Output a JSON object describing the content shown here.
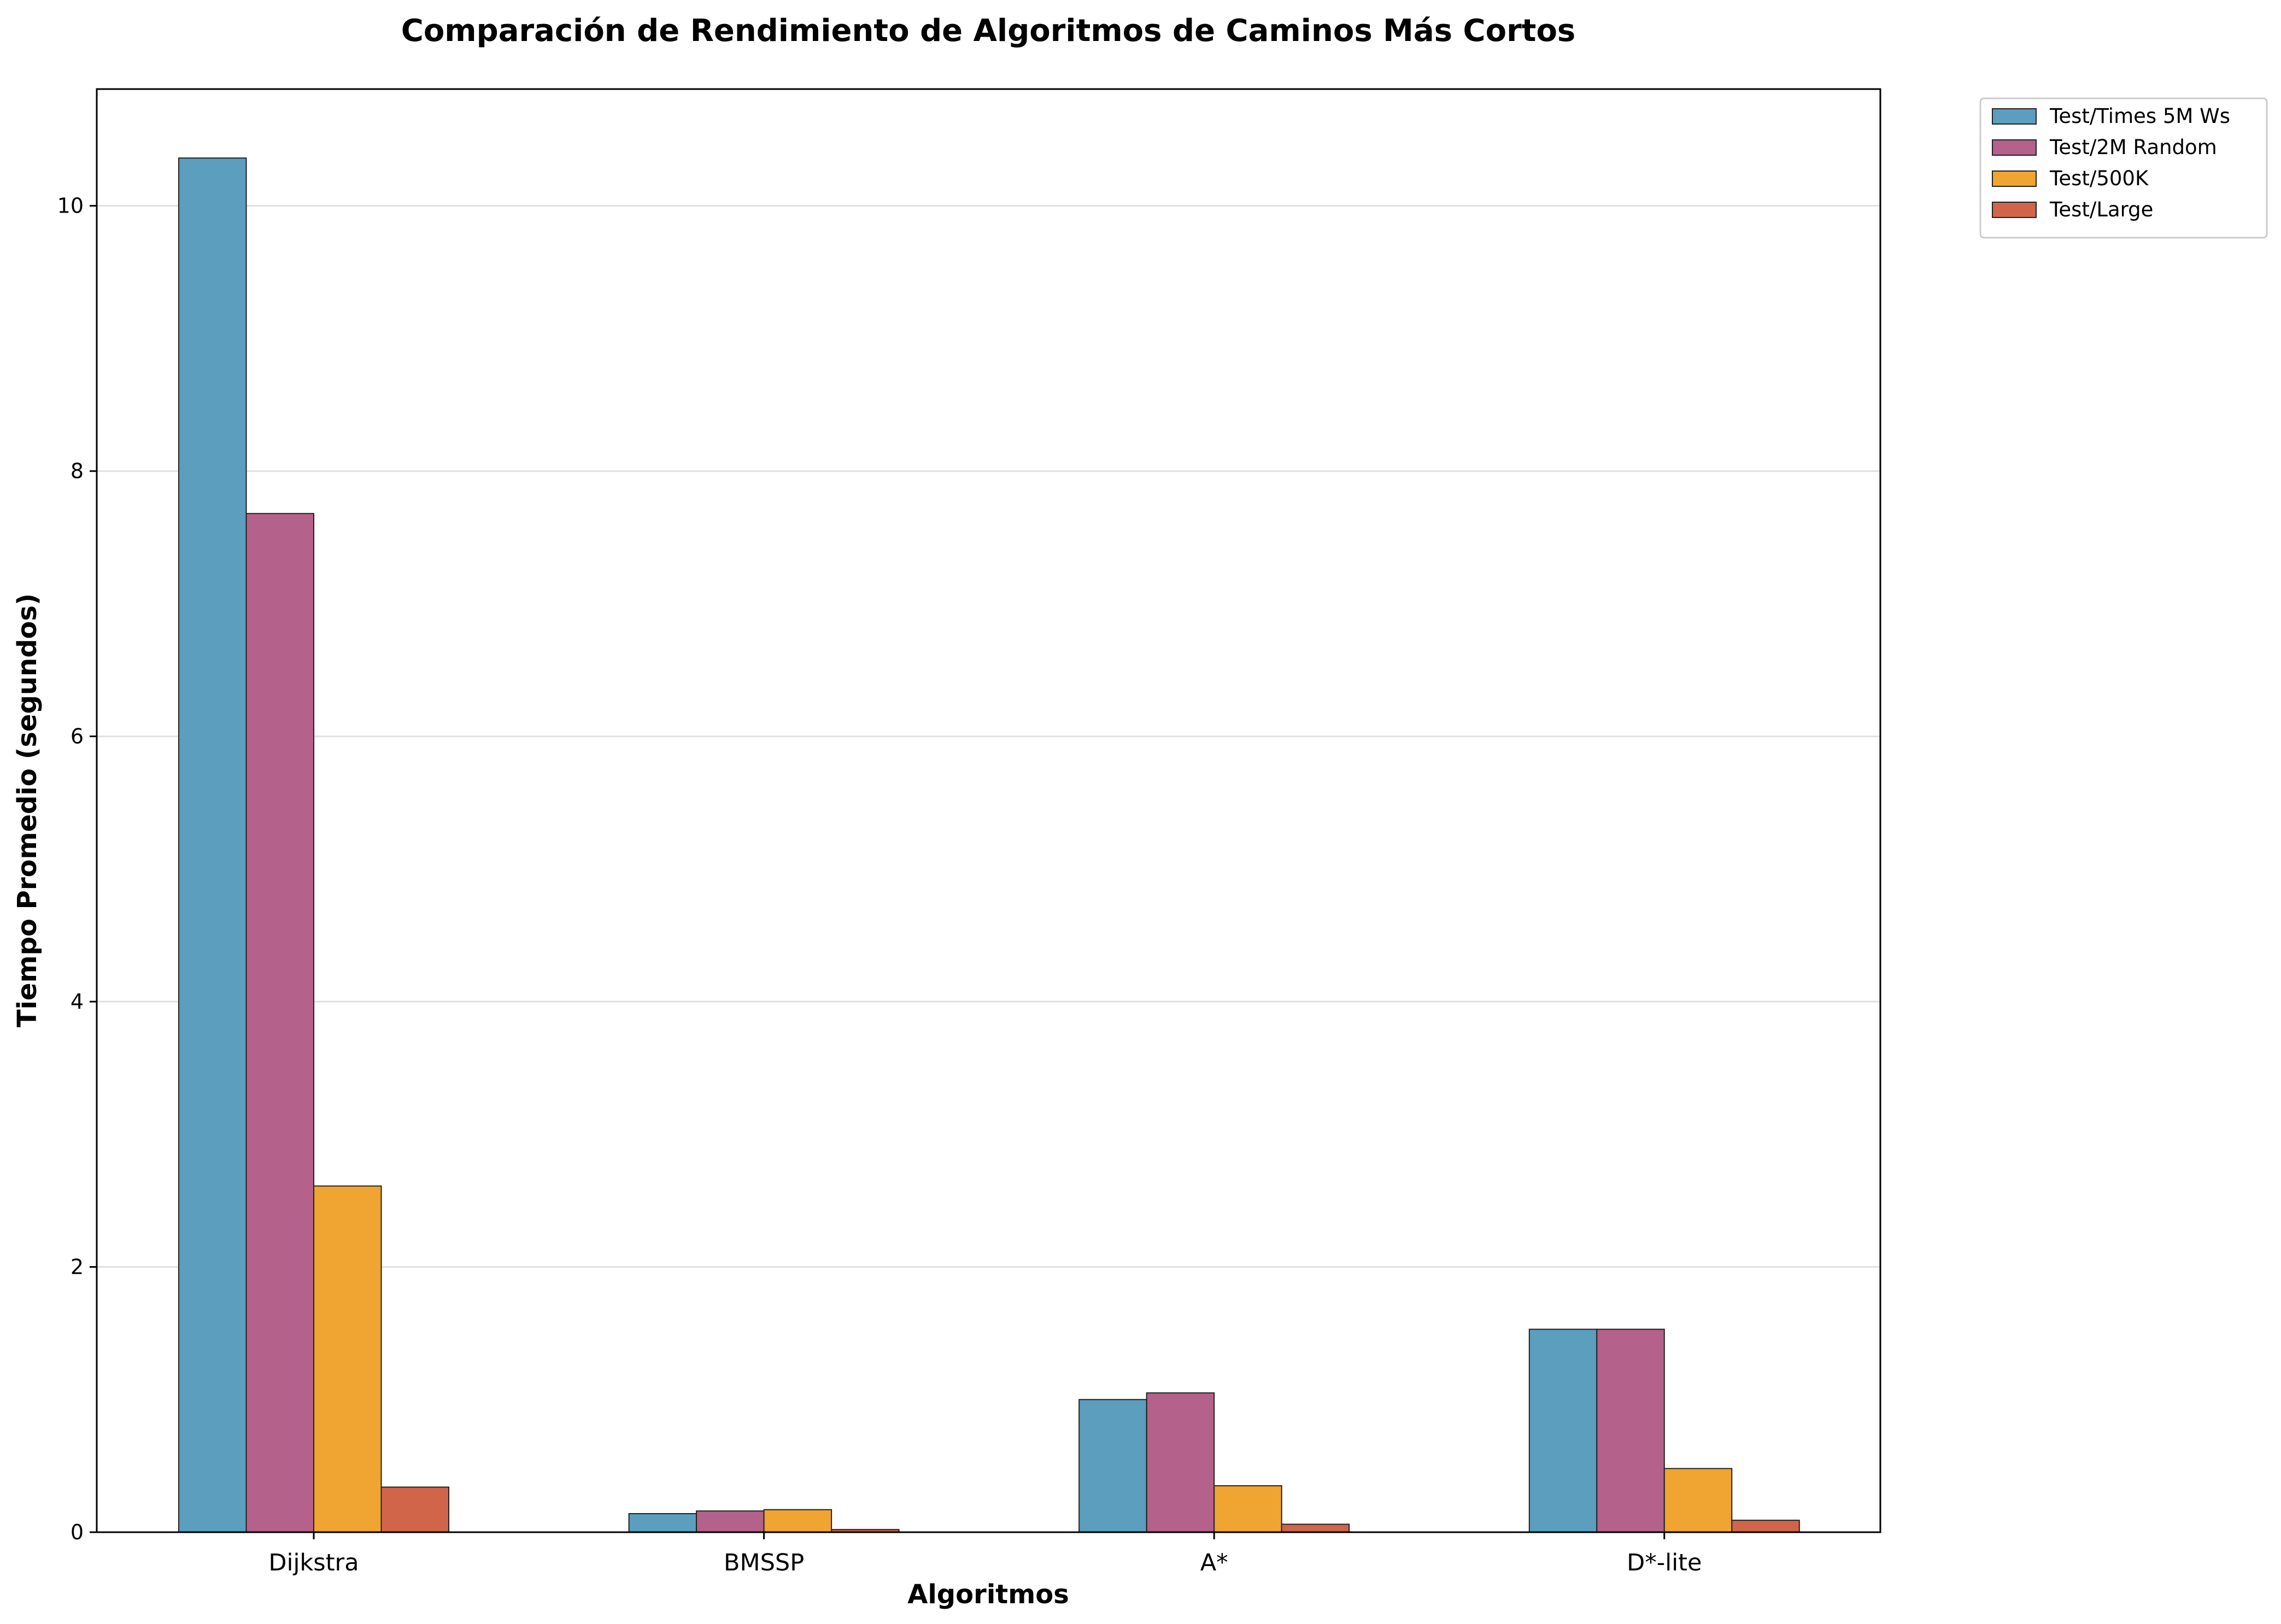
{
  "chart_data": {
    "type": "bar",
    "title": "Comparación de Rendimiento de Algoritmos de Caminos Más Cortos",
    "xlabel": "Algoritmos",
    "ylabel": "Tiempo Promedio (segundos)",
    "categories": [
      "Dijkstra",
      "BMSSP",
      "A*",
      "D*-lite"
    ],
    "series": [
      {
        "name": "Test/Times 5M Ws",
        "color": "#5b9ebd",
        "values": [
          10.36,
          0.14,
          1.0,
          1.53
        ]
      },
      {
        "name": "Test/2M Random",
        "color": "#b4618b",
        "values": [
          7.68,
          0.16,
          1.05,
          1.53
        ]
      },
      {
        "name": "Test/500K",
        "color": "#f0a431",
        "values": [
          2.61,
          0.17,
          0.35,
          0.48
        ]
      },
      {
        "name": "Test/Large",
        "color": "#d0654a",
        "values": [
          0.34,
          0.02,
          0.06,
          0.09
        ]
      }
    ],
    "ylim": [
      0,
      10.88
    ],
    "yticks": [
      0,
      2,
      4,
      6,
      8,
      10
    ],
    "grid": "y",
    "legend_position": "outside-top-right"
  }
}
